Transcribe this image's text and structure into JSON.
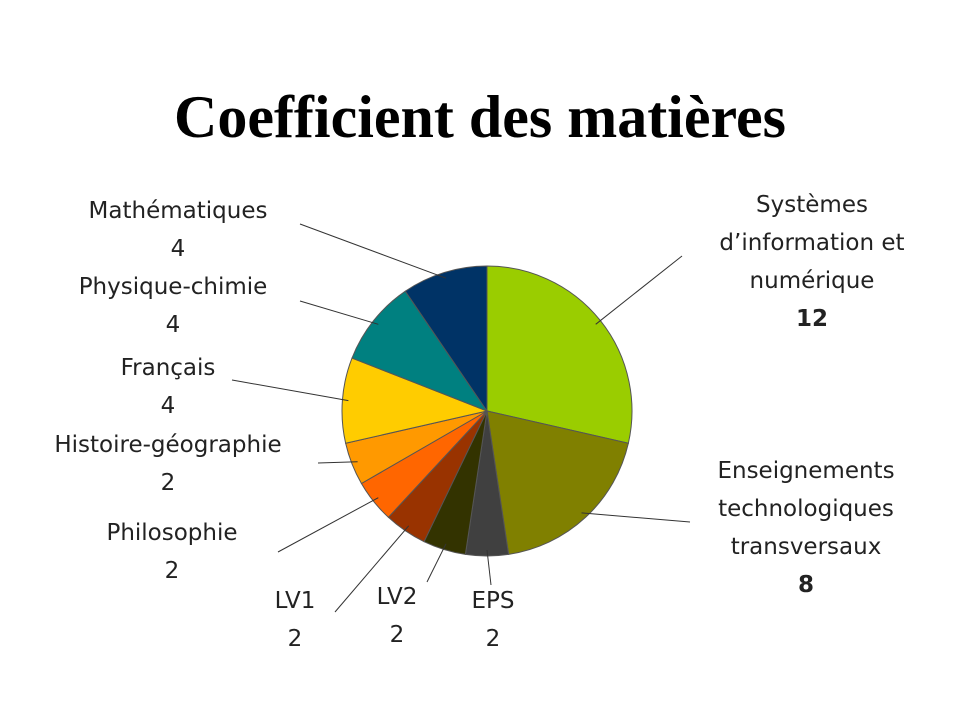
{
  "chart_data": {
    "type": "pie",
    "title": "Coefficient des matières",
    "slices": [
      {
        "label": "Systèmes d’information et numérique",
        "value": 12,
        "value_label": "12",
        "color": "#9ACD00",
        "bold_value": true
      },
      {
        "label": "Enseignements technologiques transversaux",
        "value": 8,
        "value_label": "8",
        "color": "#808000",
        "bold_value": true
      },
      {
        "label": "EPS",
        "value": 2,
        "value_label": "2",
        "color": "#404040",
        "bold_value": false
      },
      {
        "label": "LV2",
        "value": 2,
        "value_label": "2",
        "color": "#333300",
        "bold_value": false
      },
      {
        "label": "LV1",
        "value": 2,
        "value_label": "2",
        "color": "#993300",
        "bold_value": false
      },
      {
        "label": "Philosophie",
        "value": 2,
        "value_label": "2",
        "color": "#FF6600",
        "bold_value": false
      },
      {
        "label": "Histoire-géographie",
        "value": 2,
        "value_label": "2",
        "color": "#FF9900",
        "bold_value": false
      },
      {
        "label": "Français",
        "value": 4,
        "value_label": "4",
        "color": "#FFCC00",
        "bold_value": false
      },
      {
        "label": "Physique-chimie",
        "value": 4,
        "value_label": "4",
        "color": "#008080",
        "bold_value": false
      },
      {
        "label": "Mathématiques",
        "value": 4,
        "value_label": "4",
        "color": "#003366",
        "bold_value": false
      }
    ],
    "start": "top",
    "direction": "clockwise",
    "legend": "none"
  }
}
